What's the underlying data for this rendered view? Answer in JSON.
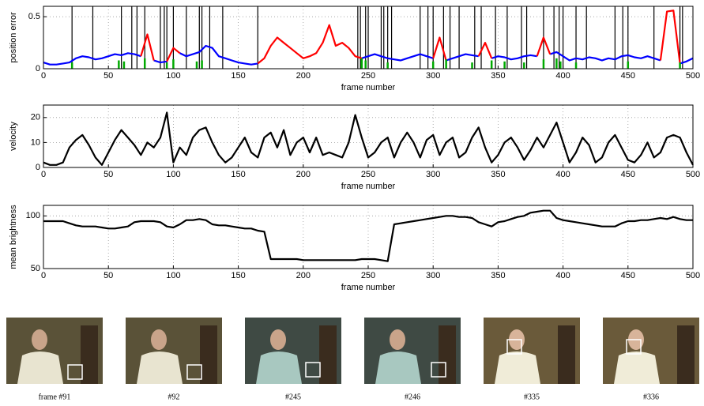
{
  "chart_data": [
    {
      "type": "line",
      "ylabel": "position error",
      "xlabel": "frame number",
      "xlim": [
        0,
        500
      ],
      "ylim": [
        0,
        0.6
      ],
      "xticks": [
        0,
        50,
        100,
        150,
        200,
        250,
        300,
        350,
        400,
        450,
        500
      ],
      "yticks": [
        0,
        0.5
      ],
      "grid": true,
      "x": [
        0,
        5,
        10,
        15,
        20,
        25,
        30,
        35,
        40,
        45,
        50,
        55,
        60,
        65,
        70,
        75,
        80,
        85,
        90,
        95,
        100,
        105,
        110,
        115,
        120,
        125,
        130,
        135,
        140,
        145,
        150,
        155,
        160,
        165,
        170,
        175,
        180,
        185,
        190,
        195,
        200,
        205,
        210,
        215,
        220,
        225,
        230,
        235,
        240,
        245,
        250,
        255,
        260,
        265,
        270,
        275,
        280,
        285,
        290,
        295,
        300,
        305,
        310,
        315,
        320,
        325,
        330,
        335,
        340,
        345,
        350,
        355,
        360,
        365,
        370,
        375,
        380,
        385,
        390,
        395,
        400,
        405,
        410,
        415,
        420,
        425,
        430,
        435,
        440,
        445,
        450,
        455,
        460,
        465,
        470,
        475,
        480,
        485,
        490,
        495,
        500
      ],
      "event_frames": [
        22,
        38,
        60,
        68,
        72,
        78,
        90,
        93,
        95,
        100,
        110,
        120,
        122,
        128,
        138,
        165,
        242,
        244,
        248,
        250,
        260,
        262,
        265,
        268,
        290,
        296,
        300,
        308,
        313,
        320,
        332,
        337,
        348,
        357,
        368,
        372,
        385,
        393,
        397,
        400,
        410,
        418,
        440,
        446,
        450,
        470,
        490,
        492
      ],
      "series": [
        {
          "color": "#0000ff",
          "values": [
            0.06,
            0.04,
            0.04,
            0.05,
            0.06,
            0.1,
            0.12,
            0.11,
            0.09,
            0.1,
            0.12,
            0.14,
            0.13,
            0.15,
            0.14,
            0.12,
            null,
            0.08,
            0.06,
            0.07,
            null,
            0.15,
            0.12,
            0.14,
            0.16,
            0.22,
            0.2,
            0.12,
            0.1,
            0.08,
            0.06,
            0.05,
            0.04,
            0.05,
            null,
            null,
            null,
            null,
            null,
            null,
            null,
            null,
            null,
            null,
            null,
            null,
            null,
            null,
            null,
            0.1,
            0.12,
            0.14,
            0.12,
            0.1,
            0.09,
            0.08,
            0.1,
            0.12,
            0.14,
            0.12,
            0.1,
            null,
            0.08,
            0.1,
            0.12,
            0.14,
            0.13,
            0.12,
            null,
            0.1,
            0.12,
            0.11,
            0.09,
            0.1,
            0.12,
            0.13,
            0.12,
            null,
            0.14,
            0.16,
            0.12,
            0.08,
            0.1,
            0.09,
            0.11,
            0.1,
            0.08,
            0.1,
            0.09,
            0.12,
            0.13,
            0.11,
            0.1,
            0.12,
            0.1,
            0.08,
            null,
            null,
            0.05,
            0.07,
            0.1
          ]
        },
        {
          "color": "#ff0000",
          "values": [
            null,
            null,
            null,
            null,
            null,
            null,
            null,
            null,
            null,
            null,
            null,
            null,
            null,
            null,
            null,
            0.12,
            0.33,
            0.08,
            null,
            0.07,
            0.2,
            0.15,
            null,
            null,
            null,
            null,
            null,
            null,
            null,
            null,
            null,
            null,
            null,
            0.05,
            0.1,
            0.22,
            0.3,
            0.25,
            0.2,
            0.15,
            0.1,
            0.12,
            0.15,
            0.25,
            0.42,
            0.22,
            0.25,
            0.2,
            0.12,
            0.1,
            null,
            null,
            null,
            null,
            null,
            null,
            null,
            null,
            null,
            null,
            0.1,
            0.3,
            0.08,
            null,
            null,
            null,
            null,
            0.12,
            0.25,
            0.1,
            null,
            null,
            null,
            null,
            null,
            null,
            0.12,
            0.3,
            0.14,
            null,
            null,
            null,
            null,
            null,
            null,
            null,
            null,
            null,
            null,
            null,
            null,
            null,
            null,
            null,
            null,
            0.08,
            0.55,
            0.56,
            0.05,
            null,
            null
          ]
        },
        {
          "color": "#00aa00",
          "style": "stem",
          "x": [
            22,
            58,
            62,
            78,
            95,
            100,
            118,
            122,
            245,
            248,
            265,
            300,
            310,
            330,
            345,
            355,
            370,
            385,
            395,
            398,
            410,
            450,
            490
          ],
          "values": [
            0.06,
            0.08,
            0.07,
            0.1,
            0.06,
            0.09,
            0.07,
            0.08,
            0.1,
            0.08,
            0.06,
            0.07,
            0.09,
            0.06,
            0.08,
            0.07,
            0.06,
            0.09,
            0.1,
            0.07,
            0.06,
            0.07,
            0.06
          ]
        }
      ]
    },
    {
      "type": "line",
      "ylabel": "velocity",
      "xlabel": "frame number",
      "xlim": [
        0,
        500
      ],
      "ylim": [
        0,
        25
      ],
      "xticks": [
        0,
        50,
        100,
        150,
        200,
        250,
        300,
        350,
        400,
        450,
        500
      ],
      "yticks": [
        0,
        10,
        20
      ],
      "grid": true,
      "x": [
        0,
        5,
        10,
        15,
        20,
        25,
        30,
        35,
        40,
        45,
        50,
        55,
        60,
        65,
        70,
        75,
        80,
        85,
        90,
        95,
        100,
        105,
        110,
        115,
        120,
        125,
        130,
        135,
        140,
        145,
        150,
        155,
        160,
        165,
        170,
        175,
        180,
        185,
        190,
        195,
        200,
        205,
        210,
        215,
        220,
        225,
        230,
        235,
        240,
        245,
        250,
        255,
        260,
        265,
        270,
        275,
        280,
        285,
        290,
        295,
        300,
        305,
        310,
        315,
        320,
        325,
        330,
        335,
        340,
        345,
        350,
        355,
        360,
        365,
        370,
        375,
        380,
        385,
        390,
        395,
        400,
        405,
        410,
        415,
        420,
        425,
        430,
        435,
        440,
        445,
        450,
        455,
        460,
        465,
        470,
        475,
        480,
        485,
        490,
        495,
        500
      ],
      "series": [
        {
          "color": "#000000",
          "values": [
            2,
            1,
            1,
            2,
            8,
            11,
            13,
            9,
            4,
            1,
            6,
            11,
            15,
            12,
            9,
            5,
            10,
            8,
            12,
            22,
            2,
            8,
            5,
            12,
            15,
            16,
            10,
            5,
            2,
            4,
            8,
            12,
            6,
            4,
            12,
            14,
            8,
            15,
            5,
            10,
            12,
            6,
            12,
            5,
            6,
            5,
            4,
            10,
            21,
            12,
            4,
            6,
            10,
            12,
            4,
            10,
            14,
            10,
            4,
            11,
            13,
            5,
            10,
            12,
            4,
            6,
            12,
            16,
            8,
            2,
            5,
            10,
            12,
            8,
            3,
            7,
            12,
            8,
            13,
            18,
            10,
            2,
            6,
            12,
            9,
            2,
            4,
            10,
            13,
            8,
            3,
            2,
            5,
            10,
            4,
            6,
            12,
            13,
            12,
            6,
            1
          ]
        }
      ]
    },
    {
      "type": "line",
      "ylabel": "mean brightness",
      "xlabel": "frame number",
      "xlim": [
        0,
        500
      ],
      "ylim": [
        50,
        110
      ],
      "xticks": [
        0,
        50,
        100,
        150,
        200,
        250,
        300,
        350,
        400,
        450,
        500
      ],
      "yticks": [
        50,
        100
      ],
      "grid": true,
      "x": [
        0,
        5,
        10,
        15,
        20,
        25,
        30,
        35,
        40,
        45,
        50,
        55,
        60,
        65,
        70,
        75,
        80,
        85,
        90,
        95,
        100,
        105,
        110,
        115,
        120,
        125,
        130,
        135,
        140,
        145,
        150,
        155,
        160,
        165,
        170,
        175,
        180,
        185,
        190,
        195,
        200,
        205,
        210,
        215,
        220,
        225,
        230,
        235,
        240,
        245,
        250,
        255,
        260,
        265,
        270,
        275,
        280,
        285,
        290,
        295,
        300,
        305,
        310,
        315,
        320,
        325,
        330,
        335,
        340,
        345,
        350,
        355,
        360,
        365,
        370,
        375,
        380,
        385,
        390,
        395,
        400,
        405,
        410,
        415,
        420,
        425,
        430,
        435,
        440,
        445,
        450,
        455,
        460,
        465,
        470,
        475,
        480,
        485,
        490,
        495,
        500
      ],
      "series": [
        {
          "color": "#000000",
          "values": [
            95,
            95,
            95,
            95,
            93,
            91,
            90,
            90,
            90,
            89,
            88,
            88,
            89,
            90,
            94,
            95,
            95,
            95,
            94,
            90,
            89,
            92,
            96,
            96,
            97,
            96,
            92,
            91,
            91,
            90,
            89,
            88,
            88,
            86,
            85,
            59,
            59,
            59,
            59,
            59,
            58,
            58,
            58,
            58,
            58,
            58,
            58,
            58,
            58,
            59,
            59,
            59,
            58,
            57,
            92,
            93,
            94,
            95,
            96,
            97,
            98,
            99,
            100,
            100,
            99,
            99,
            98,
            94,
            92,
            90,
            94,
            95,
            97,
            99,
            100,
            103,
            104,
            105,
            105,
            98,
            96,
            95,
            94,
            93,
            92,
            91,
            90,
            90,
            90,
            93,
            95,
            95,
            96,
            96,
            97,
            98,
            97,
            99,
            97,
            96,
            96
          ]
        }
      ]
    }
  ],
  "images": [
    {
      "caption": "frame #91"
    },
    {
      "caption": "#92"
    },
    {
      "caption": "#245"
    },
    {
      "caption": "#246"
    },
    {
      "caption": "#335"
    },
    {
      "caption": "#336"
    }
  ]
}
